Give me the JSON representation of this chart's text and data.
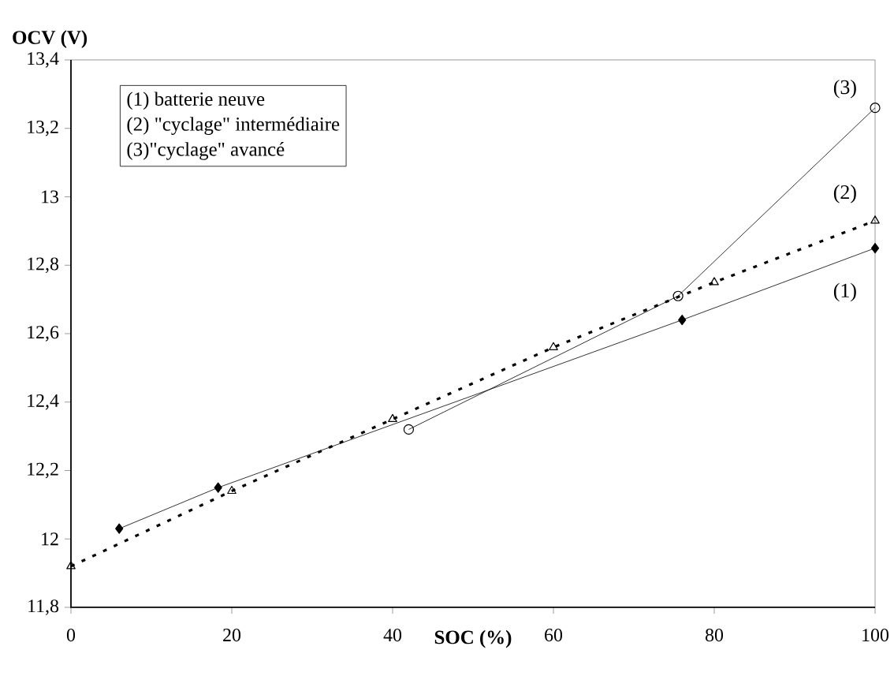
{
  "chart_data": {
    "type": "line",
    "xlabel": "SOC (%)",
    "ylabel": "OCV (V)",
    "series": [
      {
        "name": "(1)",
        "color": "#000000",
        "marker": "diamond",
        "line_style": "solid",
        "x": [
          6,
          18.3,
          76,
          100
        ],
        "values": [
          12.03,
          12.15,
          12.64,
          12.85
        ]
      },
      {
        "name": "(2)",
        "color": "#000000",
        "marker": "triangle",
        "line_style": "dotted",
        "x": [
          0,
          20,
          40,
          60,
          80,
          100
        ],
        "values": [
          11.92,
          12.14,
          12.35,
          12.56,
          12.75,
          12.93
        ]
      },
      {
        "name": "(3)",
        "color": "#000000",
        "marker": "circle",
        "line_style": "solid",
        "x": [
          42,
          75.5,
          100
        ],
        "values": [
          12.32,
          12.71,
          13.26
        ]
      }
    ],
    "xlim": [
      0,
      100
    ],
    "xticks": [
      0,
      20,
      40,
      60,
      80,
      100
    ],
    "ylim": [
      11.8,
      13.4
    ],
    "yticks": [
      {
        "value": 11.8,
        "label": "11,8"
      },
      {
        "value": 12,
        "label": "12"
      },
      {
        "value": 12.2,
        "label": "12,2"
      },
      {
        "value": 12.4,
        "label": "12,4"
      },
      {
        "value": 12.6,
        "label": "12,6"
      },
      {
        "value": 12.8,
        "label": "12,8"
      },
      {
        "value": 13,
        "label": "13"
      },
      {
        "value": 13.2,
        "label": "13,2"
      },
      {
        "value": 13.4,
        "label": "13,4"
      }
    ],
    "grid": false,
    "annotations": [
      "(1) batterie neuve",
      "(2) \"cyclage\" intermédiaire",
      "(3)\"cyclage\" avancé"
    ]
  }
}
